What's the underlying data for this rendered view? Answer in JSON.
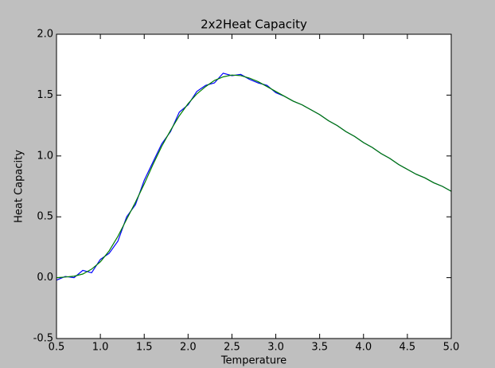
{
  "chart_data": {
    "type": "line",
    "title": "2x2Heat Capacity",
    "x_label": "Temperature",
    "y_label": "Heat Capacity",
    "x": [
      0.5,
      0.6,
      0.7,
      0.8,
      0.9,
      1.0,
      1.1,
      1.2,
      1.3,
      1.4,
      1.5,
      1.6,
      1.7,
      1.8,
      1.9,
      2.0,
      2.1,
      2.2,
      2.3,
      2.4,
      2.5,
      2.6,
      2.7,
      2.8,
      2.9,
      3.0,
      3.1,
      3.2,
      3.3,
      3.4,
      3.5,
      3.6,
      3.7,
      3.8,
      3.9,
      4.0,
      4.1,
      4.2,
      4.3,
      4.4,
      4.5,
      4.6,
      4.7,
      4.8,
      4.9,
      5.0
    ],
    "series": [
      {
        "color": "#0000ff",
        "values": [
          -0.02,
          0.01,
          0.0,
          0.06,
          0.04,
          0.15,
          0.2,
          0.3,
          0.5,
          0.6,
          0.8,
          0.95,
          1.1,
          1.2,
          1.36,
          1.42,
          1.53,
          1.58,
          1.6,
          1.68,
          1.66,
          1.67,
          1.63,
          1.6,
          1.58,
          1.52,
          1.49,
          1.45,
          1.42,
          1.38,
          1.34,
          1.29,
          1.25,
          1.2,
          1.16,
          1.11,
          1.07,
          1.02,
          0.98,
          0.93,
          0.89,
          0.85,
          0.82,
          0.78,
          0.75,
          0.71
        ]
      },
      {
        "color": "#007f00",
        "values": [
          0.0,
          0.005,
          0.012,
          0.03,
          0.07,
          0.13,
          0.22,
          0.34,
          0.48,
          0.62,
          0.77,
          0.93,
          1.08,
          1.21,
          1.33,
          1.43,
          1.51,
          1.57,
          1.62,
          1.65,
          1.665,
          1.66,
          1.64,
          1.61,
          1.57,
          1.53,
          1.49,
          1.45,
          1.42,
          1.38,
          1.34,
          1.29,
          1.25,
          1.2,
          1.16,
          1.11,
          1.07,
          1.02,
          0.98,
          0.93,
          0.89,
          0.85,
          0.82,
          0.78,
          0.75,
          0.71
        ]
      }
    ],
    "xlim": [
      0.5,
      5.0
    ],
    "ylim": [
      -0.5,
      2.0
    ],
    "xticks": [
      0.5,
      {
        "value": 1,
        "label": "1.0"
      },
      1.5,
      {
        "value": 2,
        "label": "2.0"
      },
      2.5,
      {
        "value": 3,
        "label": "3.0"
      },
      3.5,
      {
        "value": 4,
        "label": "4.0"
      },
      4.5,
      {
        "value": 5,
        "label": "5.0"
      }
    ],
    "yticks": [
      -0.5,
      {
        "value": 0,
        "label": "0.0"
      },
      0.5,
      {
        "value": 1,
        "label": "1.0"
      },
      1.5,
      {
        "value": 2,
        "label": "2.0"
      }
    ],
    "grid": false
  }
}
